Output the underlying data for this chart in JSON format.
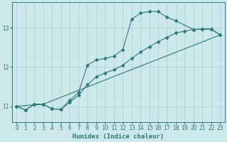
{
  "xlabel": "Humidex (Indice chaleur)",
  "xlim": [
    -0.5,
    23.5
  ],
  "ylim": [
    10.6,
    13.65
  ],
  "bg_color": "#cce8ea",
  "grid_color": "#aad0d4",
  "line_color": "#2d7a78",
  "yticks": [
    11,
    12,
    13
  ],
  "xticks": [
    0,
    1,
    2,
    3,
    4,
    5,
    6,
    7,
    8,
    9,
    10,
    11,
    12,
    13,
    14,
    15,
    16,
    17,
    18,
    19,
    20,
    21,
    22,
    23
  ],
  "line1_x": [
    0,
    3,
    23
  ],
  "line1_y": [
    11.0,
    11.05,
    12.82
  ],
  "line2_x": [
    0,
    1,
    2,
    3,
    4,
    5,
    6,
    7,
    8,
    9,
    10,
    11,
    12,
    13,
    14,
    15,
    16,
    17,
    18,
    19,
    20,
    21,
    22,
    23
  ],
  "line2_y": [
    11.0,
    10.9,
    11.05,
    11.05,
    10.93,
    10.92,
    11.1,
    11.28,
    11.55,
    11.75,
    11.85,
    11.93,
    12.05,
    12.22,
    12.38,
    12.52,
    12.65,
    12.76,
    12.87,
    12.92,
    12.96,
    12.97,
    12.97,
    12.82
  ],
  "line3_x": [
    0,
    1,
    2,
    3,
    4,
    5,
    6,
    7,
    8,
    9,
    10,
    11,
    12,
    13,
    14,
    15,
    16,
    17,
    18,
    20,
    21,
    22,
    23
  ],
  "line3_y": [
    11.0,
    10.9,
    11.05,
    11.05,
    10.93,
    10.92,
    11.15,
    11.35,
    12.05,
    12.18,
    12.22,
    12.28,
    12.45,
    13.22,
    13.38,
    13.42,
    13.42,
    13.27,
    13.18,
    12.96,
    12.97,
    12.97,
    12.82
  ]
}
